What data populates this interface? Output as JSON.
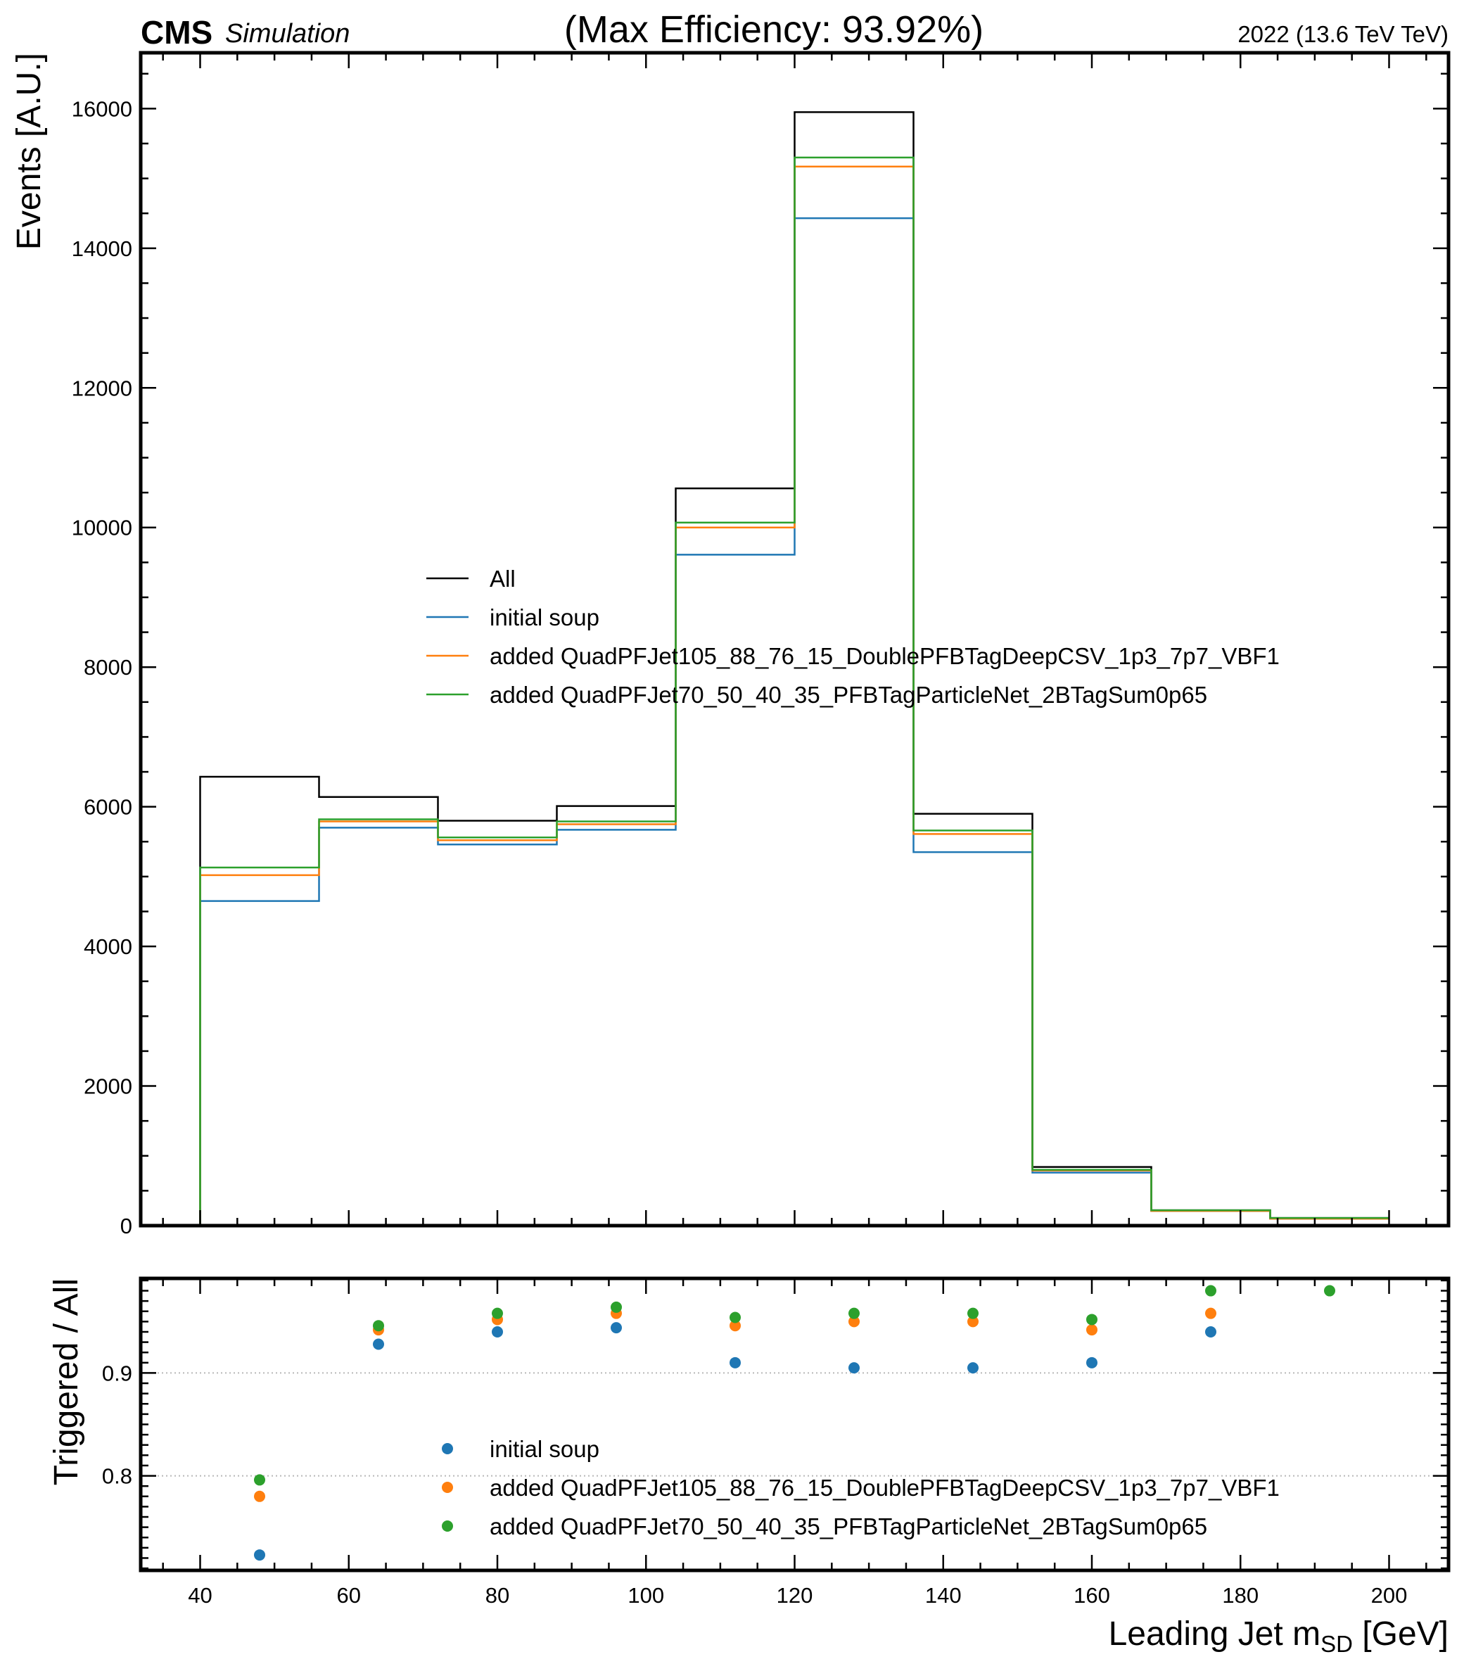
{
  "header": {
    "experiment": "CMS",
    "tag": "Simulation",
    "title": "(Max Efficiency: 93.92%)",
    "lumi": "2022 (13.6 TeV TeV)"
  },
  "chart_data": [
    {
      "type": "line",
      "subtype": "step-histogram",
      "ylabel": "Events [A.U.]",
      "xlim": [
        32,
        208
      ],
      "ylim": [
        0,
        16800
      ],
      "y_ticks": [
        0,
        2000,
        4000,
        6000,
        8000,
        10000,
        12000,
        14000,
        16000
      ],
      "bin_edges": [
        40,
        56,
        72,
        88,
        104,
        120,
        136,
        152,
        168,
        184,
        200
      ],
      "legend_position": "center",
      "series": [
        {
          "name": "All",
          "color": "#000000",
          "values": [
            6430,
            6140,
            5800,
            6010,
            10560,
            15950,
            5900,
            840,
            220,
            110
          ]
        },
        {
          "name": "initial soup",
          "color": "#1f77b4",
          "values": [
            4650,
            5700,
            5460,
            5670,
            9610,
            14430,
            5350,
            760,
            210,
            100
          ]
        },
        {
          "name": "added QuadPFJet105_88_76_15_DoublePFBTagDeepCSV_1p3_7p7_VBF1",
          "color": "#ff7f0e",
          "values": [
            5020,
            5790,
            5520,
            5750,
            10000,
            15170,
            5610,
            790,
            210,
            100
          ]
        },
        {
          "name": "added QuadPFJet70_50_40_35_PFBTagParticleNet_2BTagSum0p65",
          "color": "#2ca02c",
          "values": [
            5130,
            5820,
            5560,
            5790,
            10070,
            15300,
            5660,
            800,
            220,
            110
          ]
        }
      ]
    },
    {
      "type": "scatter",
      "ylabel": "Triggered / All",
      "xlabel_main": "Leading Jet m",
      "xlabel_sub": "SD",
      "xlabel_unit": " [GeV]",
      "xlim": [
        32,
        208
      ],
      "ylim": [
        0.708,
        0.992
      ],
      "x_ticks": [
        40,
        60,
        80,
        100,
        120,
        140,
        160,
        180,
        200
      ],
      "y_ticks": [
        0.8,
        0.9
      ],
      "grid": "horizontal dotted at major ticks",
      "legend_position": "lower-center",
      "x": [
        48,
        64,
        80,
        96,
        112,
        128,
        144,
        160,
        176,
        192
      ],
      "series": [
        {
          "name": "initial soup",
          "color": "#1f77b4",
          "values": [
            0.723,
            0.928,
            0.94,
            0.944,
            0.91,
            0.905,
            0.905,
            0.91,
            0.94,
            null
          ]
        },
        {
          "name": "added QuadPFJet105_88_76_15_DoublePFBTagDeepCSV_1p3_7p7_VBF1",
          "color": "#ff7f0e",
          "values": [
            0.78,
            0.942,
            0.952,
            0.958,
            0.946,
            0.95,
            0.95,
            0.942,
            0.958,
            null
          ]
        },
        {
          "name": "added QuadPFJet70_50_40_35_PFBTagParticleNet_2BTagSum0p65",
          "color": "#2ca02c",
          "values": [
            0.796,
            0.946,
            0.958,
            0.964,
            0.954,
            0.958,
            0.958,
            0.952,
            0.98,
            0.98
          ]
        }
      ]
    }
  ]
}
